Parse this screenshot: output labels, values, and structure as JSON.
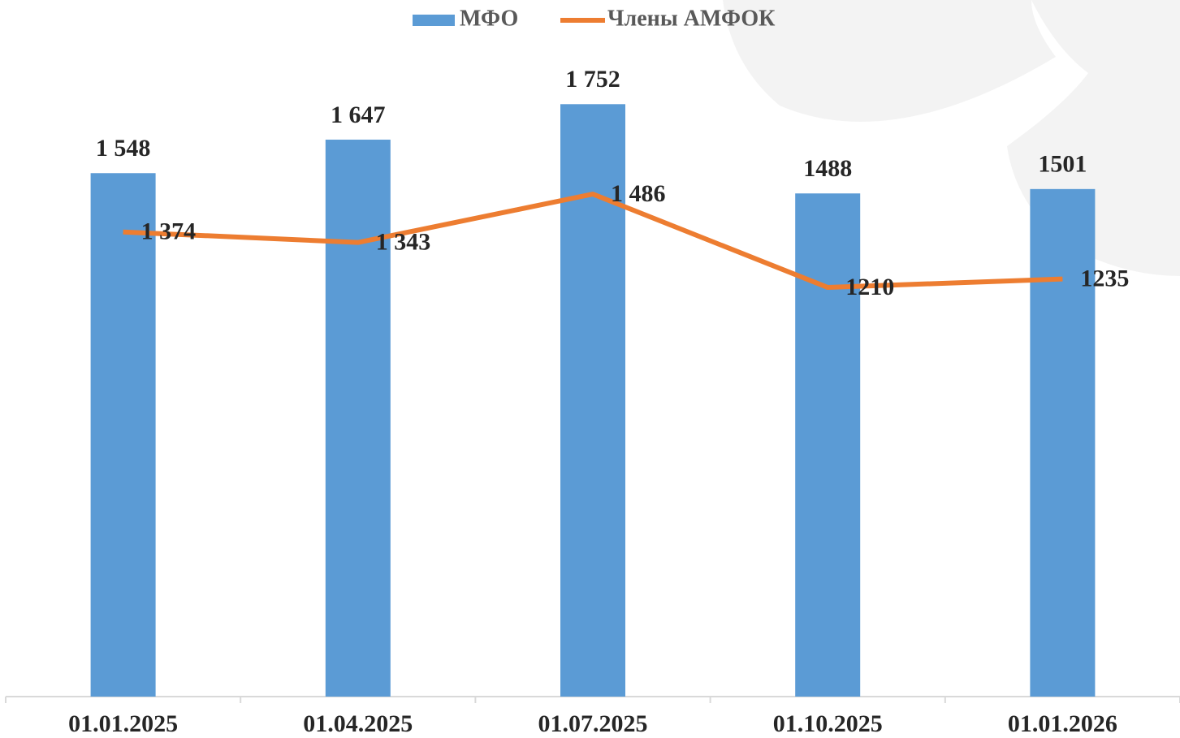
{
  "chart_data": {
    "type": "bar",
    "categories": [
      "01.01.2025",
      "01.04.2025",
      "01.07.2025",
      "01.10.2025",
      "01.01.2026"
    ],
    "series": [
      {
        "name": "МФО",
        "type": "bar",
        "color": "#5b9bd5",
        "values": [
          1548,
          1647,
          1752,
          1488,
          1501
        ],
        "value_labels": [
          "1 548",
          "1 647",
          "1 752",
          "1488",
          "1501"
        ]
      },
      {
        "name": "Члены АМФОК",
        "type": "line",
        "color": "#ed7d31",
        "values": [
          1374,
          1343,
          1486,
          1210,
          1235
        ],
        "value_labels": [
          "1 374",
          "1 343",
          "1 486",
          "1210",
          "1235"
        ]
      }
    ],
    "ylim": [
      0,
      2000
    ],
    "legend": "top"
  }
}
